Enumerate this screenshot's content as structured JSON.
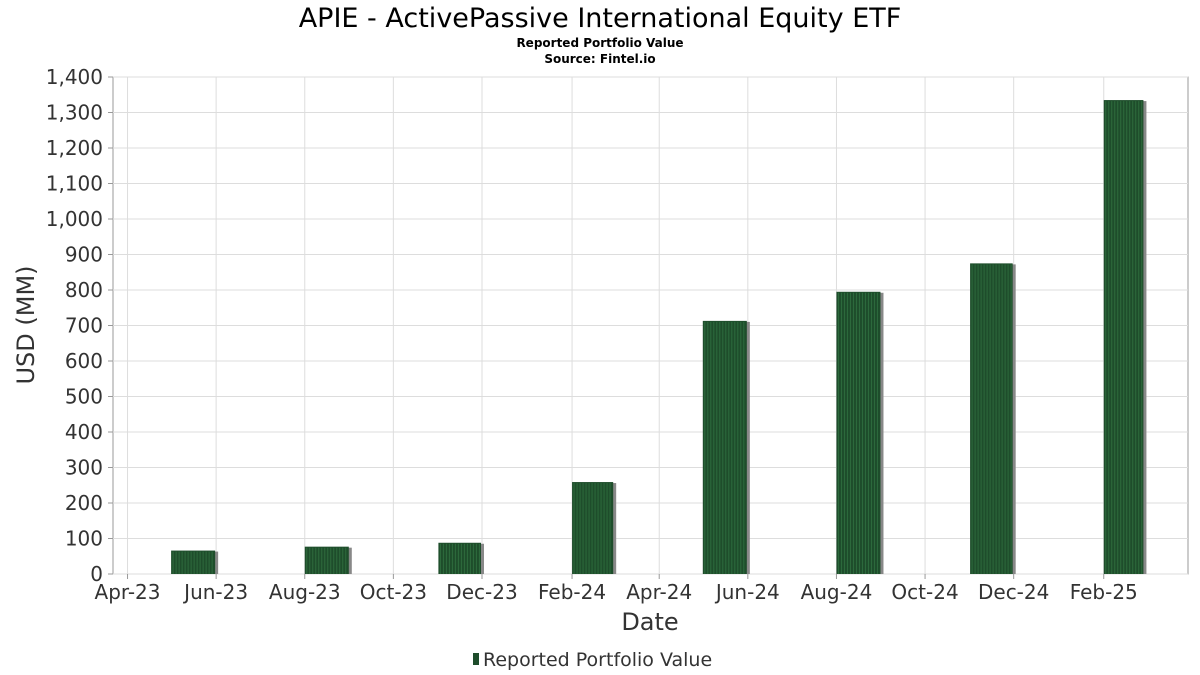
{
  "chart_data": {
    "type": "bar",
    "title": "APIE - ActivePassive International Equity ETF",
    "subtitle": "Reported Portfolio Value",
    "source": "Source: Fintel.io",
    "xlabel": "Date",
    "ylabel": "USD (MM)",
    "ylim": [
      0,
      1400
    ],
    "y_ticks": [
      0,
      100,
      200,
      300,
      400,
      500,
      600,
      700,
      800,
      900,
      1000,
      1100,
      1200,
      1300,
      1400
    ],
    "y_tick_labels": [
      "0",
      "100",
      "200",
      "300",
      "400",
      "500",
      "600",
      "700",
      "800",
      "900",
      "1,000",
      "1,100",
      "1,200",
      "1,300",
      "1,400"
    ],
    "x_range": [
      "2023-03-22",
      "2025-03-31"
    ],
    "x_ticks": [
      {
        "date": "2023-04-01",
        "label": "Apr-23"
      },
      {
        "date": "2023-06-01",
        "label": "Jun-23"
      },
      {
        "date": "2023-08-01",
        "label": "Aug-23"
      },
      {
        "date": "2023-10-01",
        "label": "Oct-23"
      },
      {
        "date": "2023-12-01",
        "label": "Dec-23"
      },
      {
        "date": "2024-02-01",
        "label": "Feb-24"
      },
      {
        "date": "2024-04-01",
        "label": "Apr-24"
      },
      {
        "date": "2024-06-01",
        "label": "Jun-24"
      },
      {
        "date": "2024-08-01",
        "label": "Aug-24"
      },
      {
        "date": "2024-10-01",
        "label": "Oct-24"
      },
      {
        "date": "2024-12-01",
        "label": "Dec-24"
      },
      {
        "date": "2025-02-01",
        "label": "Feb-25"
      }
    ],
    "series": [
      {
        "name": "Reported Portfolio Value",
        "color": "#1e4d2b",
        "shadow_color": "#888888",
        "points": [
          {
            "start": "2023-05-01",
            "end": "2023-06-01",
            "value": 66
          },
          {
            "start": "2023-08-01",
            "end": "2023-09-01",
            "value": 77
          },
          {
            "start": "2023-11-01",
            "end": "2023-12-01",
            "value": 88
          },
          {
            "start": "2024-02-01",
            "end": "2024-03-01",
            "value": 259
          },
          {
            "start": "2024-05-01",
            "end": "2024-06-01",
            "value": 713
          },
          {
            "start": "2024-08-01",
            "end": "2024-09-01",
            "value": 795
          },
          {
            "start": "2024-11-01",
            "end": "2024-12-01",
            "value": 875
          },
          {
            "start": "2025-02-01",
            "end": "2025-03-01",
            "value": 1335
          }
        ]
      }
    ],
    "legend": {
      "position": "bottom-center",
      "label": "Reported Portfolio Value"
    },
    "grid": true
  }
}
